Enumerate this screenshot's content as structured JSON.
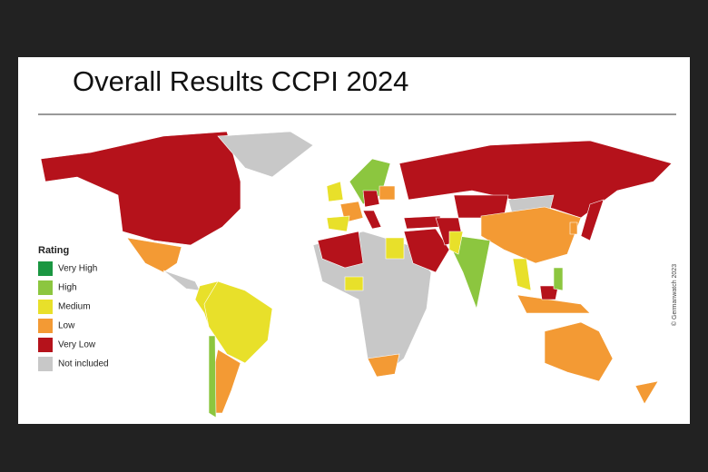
{
  "header": {
    "title": "Overall Results CCPI 2024"
  },
  "legend": {
    "title": "Rating",
    "items": [
      {
        "label": "Very High",
        "color": "#1a9641"
      },
      {
        "label": "High",
        "color": "#8cc63f"
      },
      {
        "label": "Medium",
        "color": "#e8e02a"
      },
      {
        "label": "Low",
        "color": "#f39a34"
      },
      {
        "label": "Very Low",
        "color": "#b5121b"
      },
      {
        "label": "Not included",
        "color": "#c8c8c8"
      }
    ]
  },
  "credit": "© Germanwatch 2023"
}
